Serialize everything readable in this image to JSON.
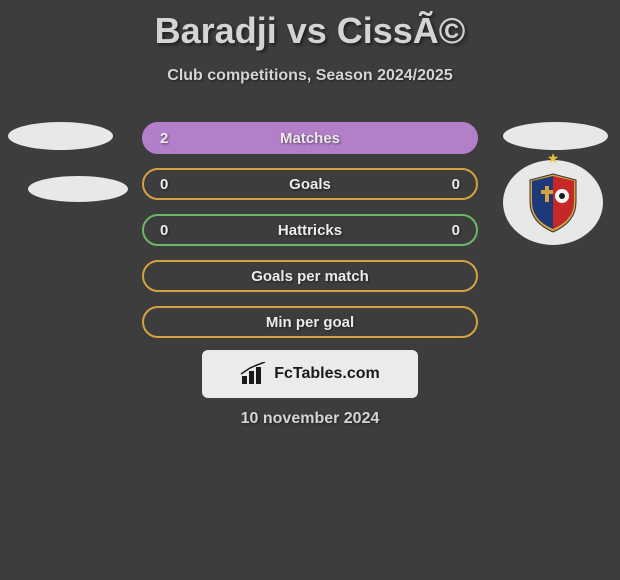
{
  "title": "Baradji vs CissÃ©",
  "subtitle": "Club competitions, Season 2024/2025",
  "date": "10 november 2024",
  "logo_text": "FcTables.com",
  "background_color": "#3d3d3d",
  "text_color": "#d4d4d4",
  "banner_bg": "#ebebeb",
  "ellipse_color": "#e8e8e8",
  "stats": [
    {
      "label": "Matches",
      "left_value": "2",
      "right_value": "",
      "border_color": "#b47fc9",
      "fill_color": "#b47fc9",
      "fill_pct": 100
    },
    {
      "label": "Goals",
      "left_value": "0",
      "right_value": "0",
      "border_color": "#d4a340",
      "fill_color": "transparent",
      "fill_pct": 0
    },
    {
      "label": "Hattricks",
      "left_value": "0",
      "right_value": "0",
      "border_color": "#6db665",
      "fill_color": "transparent",
      "fill_pct": 0
    },
    {
      "label": "Goals per match",
      "left_value": "",
      "right_value": "",
      "border_color": "#d4a340",
      "fill_color": "transparent",
      "fill_pct": 0
    },
    {
      "label": "Min per goal",
      "left_value": "",
      "right_value": "",
      "border_color": "#d4a340",
      "fill_color": "transparent",
      "fill_pct": 0
    }
  ],
  "club_logo": {
    "shield_left_color": "#1c3a7a",
    "shield_right_color": "#c62828",
    "shield_border": "#d4a340",
    "star_color": "#e8c137"
  }
}
